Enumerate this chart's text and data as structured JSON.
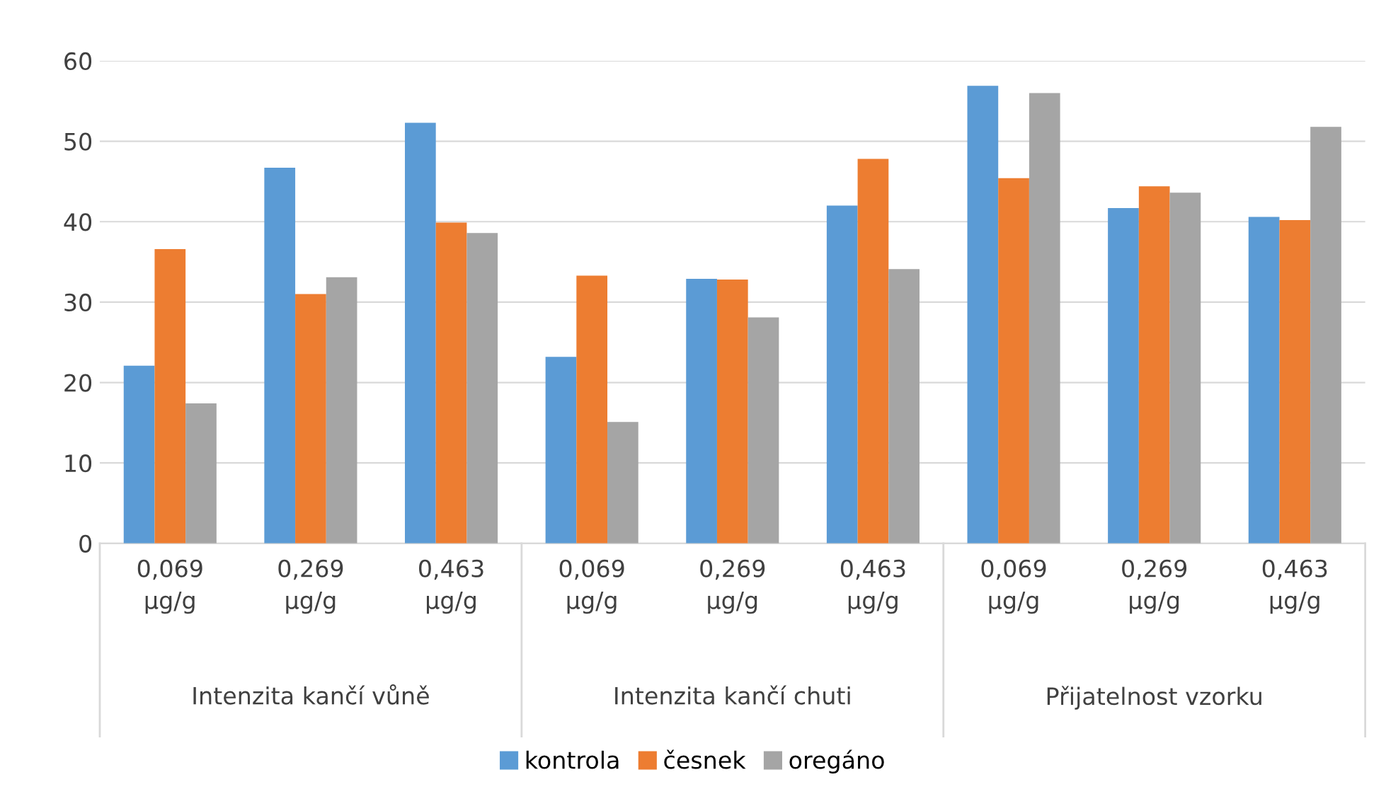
{
  "chart_data": {
    "type": "bar",
    "categories": [
      "0,069\nµg/g",
      "0,269\nµg/g",
      "0,463\nµg/g",
      "0,069\nµg/g",
      "0,269\nµg/g",
      "0,463\nµg/g",
      "0,069\nµg/g",
      "0,269\nµg/g",
      "0,463\nµg/g"
    ],
    "series": [
      {
        "name": "kontrola",
        "color": "#5b9bd5",
        "values": [
          22.1,
          46.7,
          52.3,
          23.2,
          32.9,
          42.0,
          56.9,
          41.7,
          40.6
        ]
      },
      {
        "name": "česnek",
        "color": "#ed7d31",
        "values": [
          36.6,
          31.0,
          39.9,
          33.3,
          32.8,
          47.8,
          45.4,
          44.4,
          40.2
        ]
      },
      {
        "name": "oregáno",
        "color": "#a5a5a5",
        "values": [
          17.4,
          33.1,
          38.6,
          15.1,
          28.1,
          34.1,
          56.0,
          43.6,
          51.8
        ]
      }
    ],
    "annotations": [
      "Intenzita kančí vůně",
      "Intenzita kančí chuti",
      "Přijatelnost vzorku"
    ],
    "ylim": [
      0,
      60
    ],
    "yticks": [
      0,
      10,
      20,
      30,
      40,
      50,
      60
    ],
    "grid": "y",
    "legend": "bottom"
  }
}
